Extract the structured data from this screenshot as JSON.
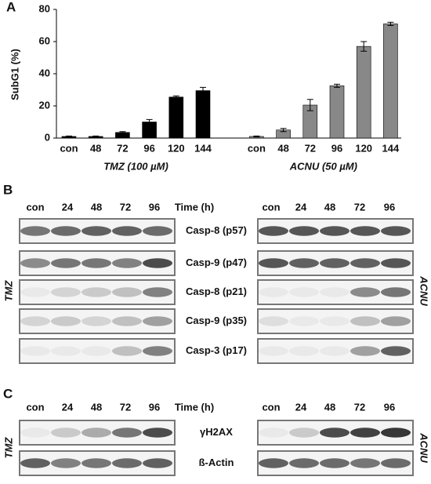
{
  "panels": [
    "A",
    "B",
    "C"
  ],
  "chart_data": {
    "type": "bar",
    "ylabel": "SubG1 (%)",
    "categories": [
      "con",
      "48",
      "72",
      "96",
      "120",
      "144",
      null,
      "con",
      "48",
      "72",
      "96",
      "120",
      "144"
    ],
    "series": [
      {
        "name": "TMZ (100 µM)",
        "color": "#000000",
        "values": [
          1,
          1,
          3.5,
          10,
          25.5,
          29.5,
          null,
          null,
          null,
          null,
          null,
          null,
          null
        ],
        "errors": [
          0.3,
          0.3,
          0.5,
          1.5,
          0.7,
          2,
          null,
          null,
          null,
          null,
          null,
          null,
          null
        ]
      },
      {
        "name": "ACNU (50 µM)",
        "color": "#888888",
        "values": [
          null,
          null,
          null,
          null,
          null,
          null,
          null,
          1,
          5,
          20.5,
          32.5,
          57,
          71
        ],
        "errors": [
          null,
          null,
          null,
          null,
          null,
          null,
          null,
          0.3,
          1,
          3.5,
          1,
          3,
          1
        ]
      }
    ],
    "ylim": [
      0,
      80
    ],
    "yticks": [
      0,
      20,
      40,
      60,
      80
    ]
  },
  "panel_b": {
    "lanes_left": [
      "con",
      "24",
      "48",
      "72",
      "96"
    ],
    "time_label": "Time (h)",
    "lanes_right": [
      "con",
      "24",
      "48",
      "72",
      "96"
    ],
    "rows": [
      "Casp-8 (p57)",
      "Casp-9 (p47)",
      "Casp-8 (p21)",
      "Casp-9 (p35)",
      "Casp-3 (p17)"
    ],
    "left_label": "TMZ",
    "right_label": "ACNU"
  },
  "panel_c": {
    "lanes_left": [
      "con",
      "24",
      "48",
      "72",
      "96"
    ],
    "time_label": "Time (h)",
    "lanes_right": [
      "con",
      "24",
      "48",
      "72",
      "96"
    ],
    "rows": [
      "γH2AX",
      "ß-Actin"
    ],
    "left_label": "TMZ",
    "right_label": "ACNU"
  }
}
